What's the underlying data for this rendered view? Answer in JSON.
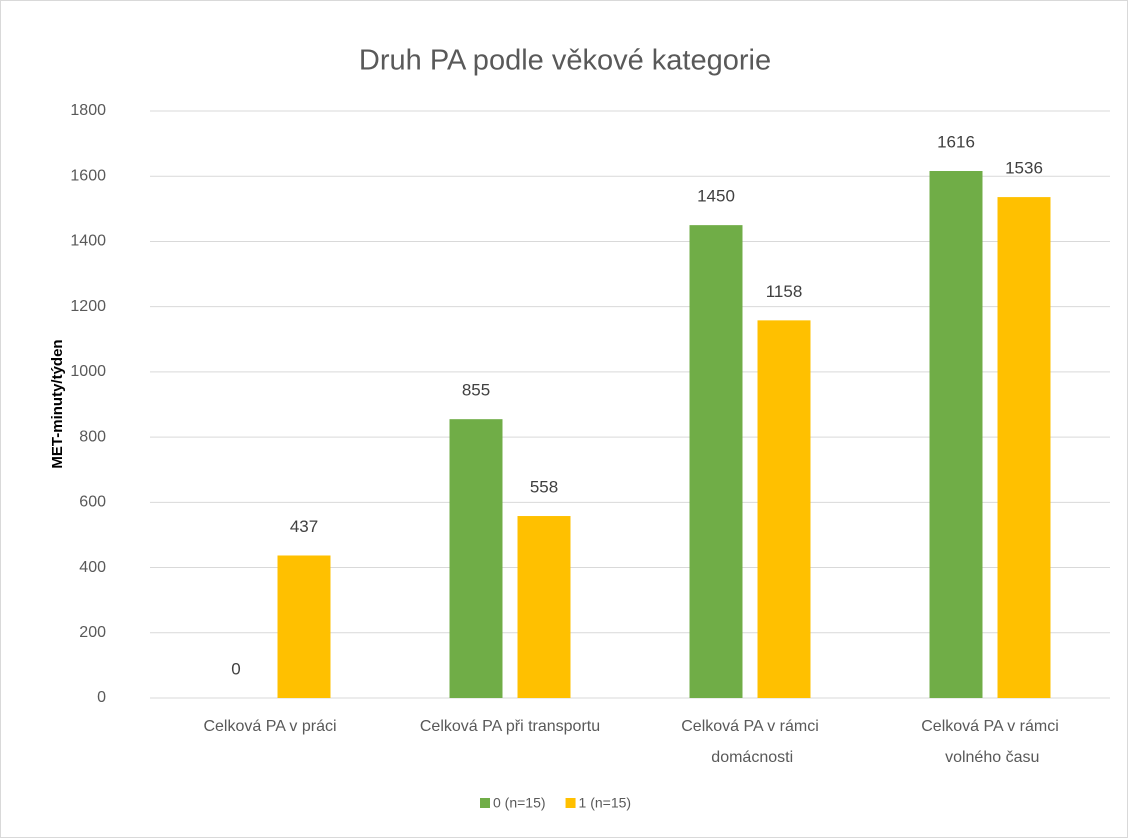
{
  "chart_data": {
    "type": "bar",
    "title": "Druh PA podle věkové kategorie",
    "y_label": "MET-minuty/týden",
    "categories": [
      "Celková PA v práci",
      "Celková PA při transportu",
      "Celková PA v rámci domácnosti",
      "Celková PA v rámci volného času"
    ],
    "series": [
      {
        "name": "0 (n=15)",
        "color": "#70ad47",
        "values": [
          0,
          855,
          1450,
          1616
        ]
      },
      {
        "name": "1 (n=15)",
        "color": "#ffc000",
        "values": [
          437,
          558,
          1158,
          1536
        ]
      }
    ],
    "ylim": [
      0,
      1800
    ],
    "yticks": [
      0,
      200,
      400,
      600,
      800,
      1000,
      1200,
      1400,
      1600,
      1800
    ],
    "grid": true,
    "legend": "bottom",
    "data_labels": true
  }
}
